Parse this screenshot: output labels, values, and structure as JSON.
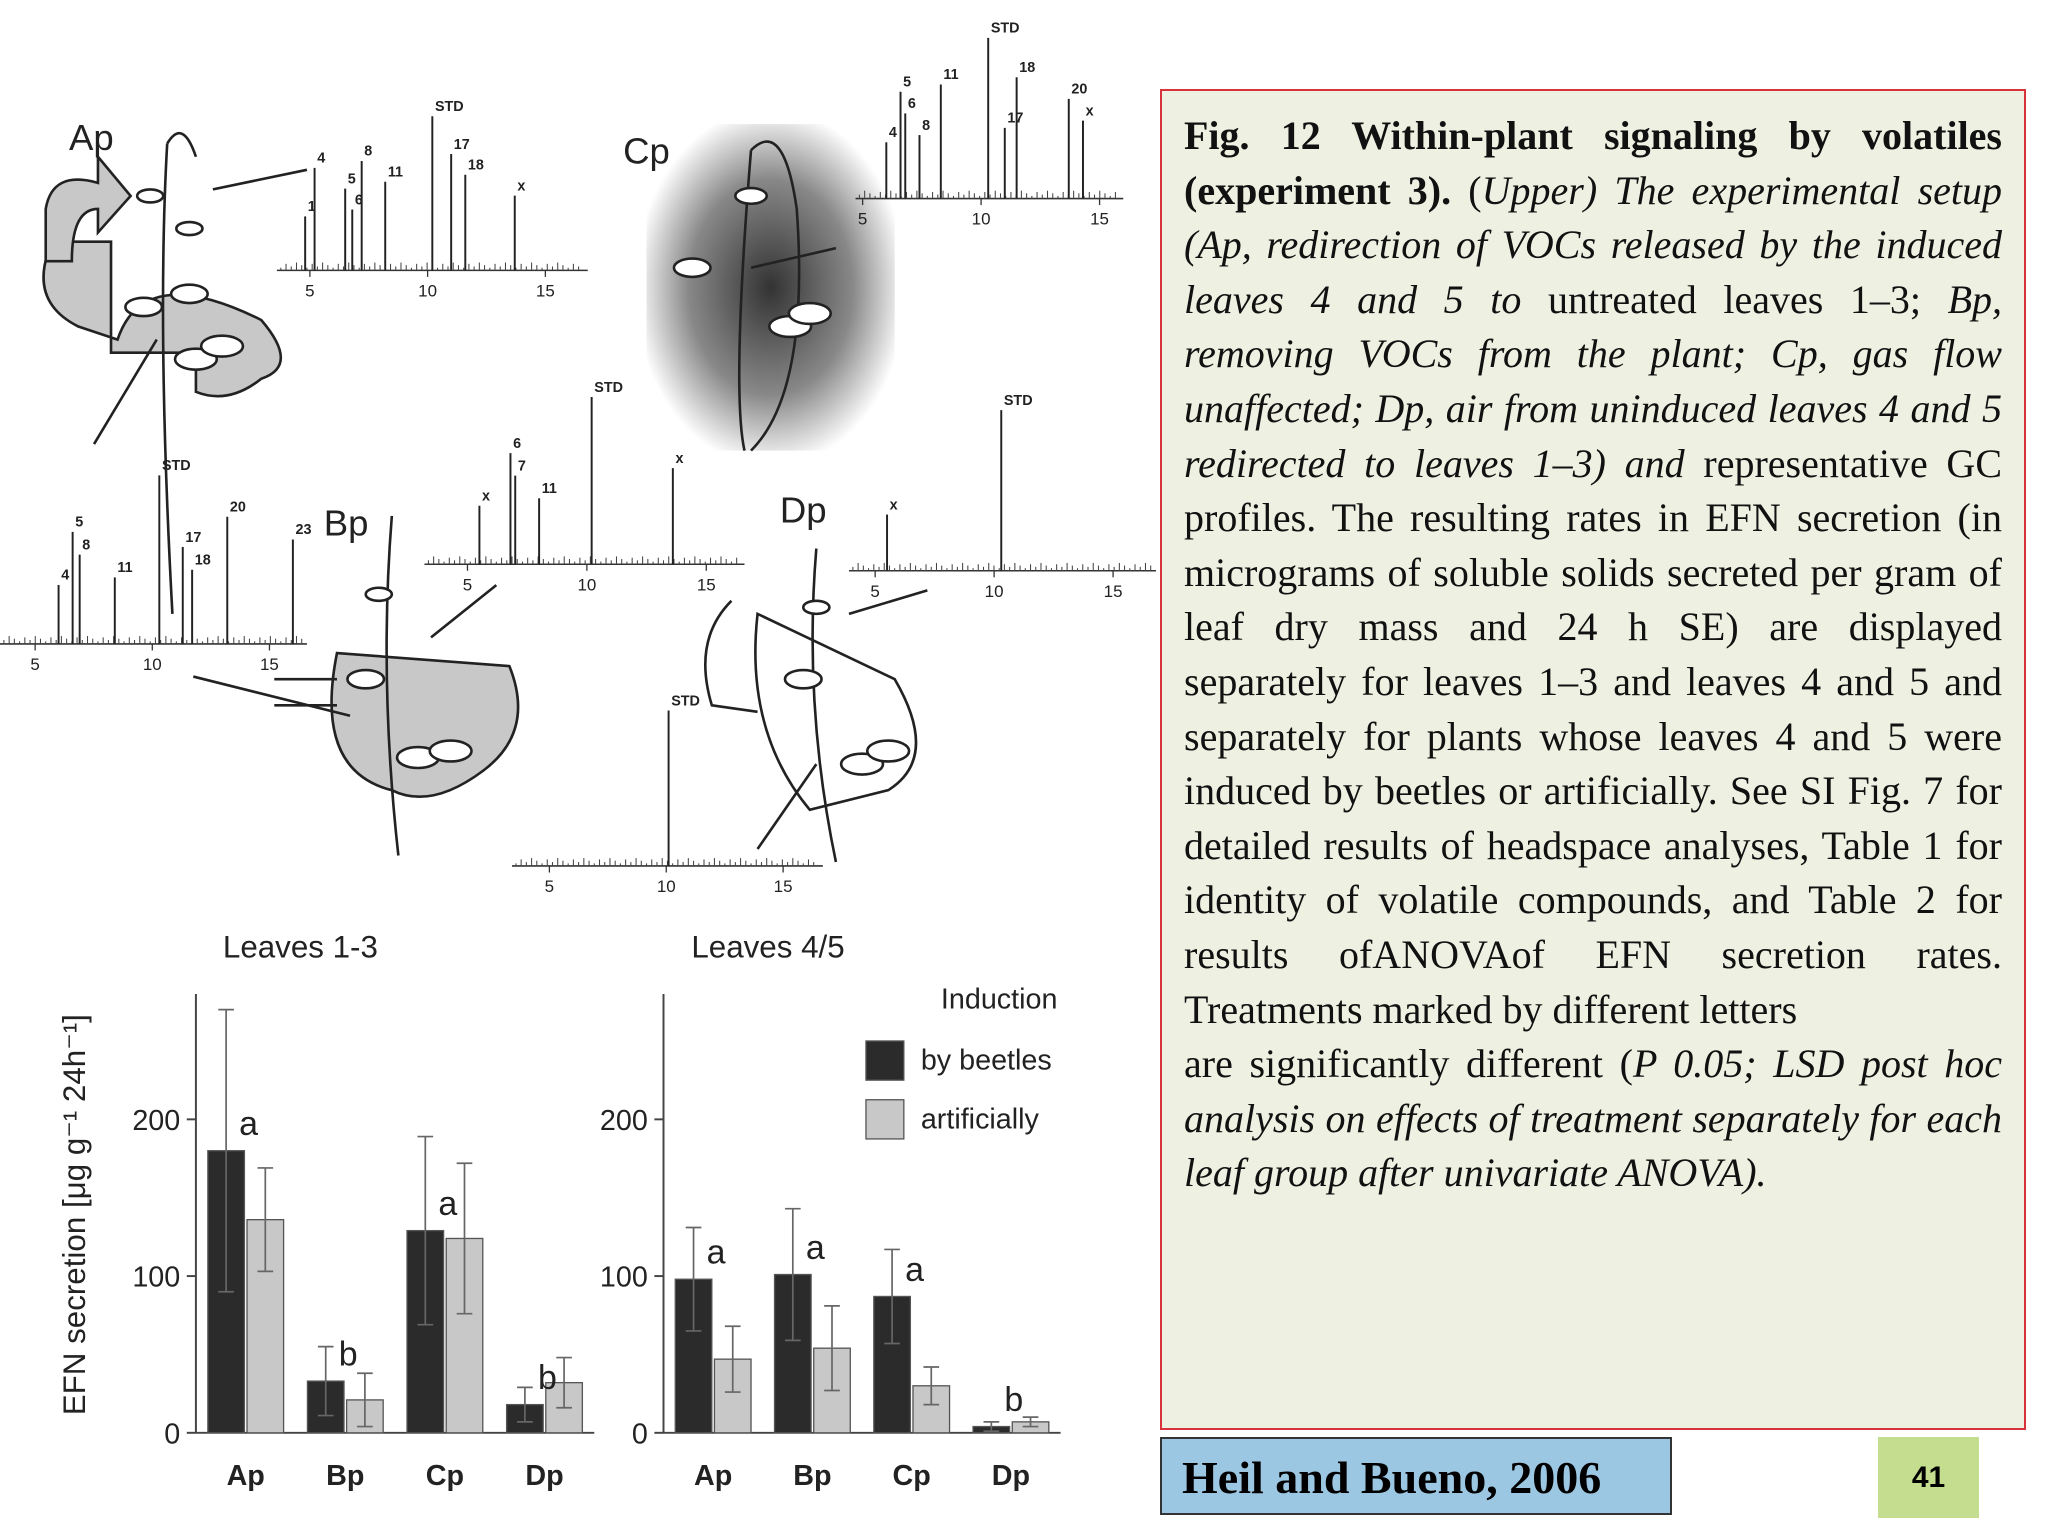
{
  "figure": {
    "plant_labels": [
      "Ap",
      "Bp",
      "Cp",
      "Dp"
    ],
    "gc_profiles": [
      {
        "xlim": [
          3.6,
          16.8
        ],
        "xticks": [
          5,
          10,
          15
        ],
        "peaks": [
          {
            "label": "1",
            "x": 4.8
          },
          {
            "label": "4",
            "x": 5.2
          },
          {
            "label": "5",
            "x": 6.5
          },
          {
            "label": "6",
            "x": 6.8
          },
          {
            "label": "8",
            "x": 7.2
          },
          {
            "label": "11",
            "x": 8.2
          },
          {
            "label": "STD",
            "x": 10.2
          },
          {
            "label": "17",
            "x": 11.0
          },
          {
            "label": "18",
            "x": 11.6
          },
          {
            "label": "x",
            "x": 13.7
          }
        ]
      },
      {
        "xlim": [
          3.5,
          16.6
        ],
        "xticks": [
          5,
          10,
          15
        ],
        "peaks": [
          {
            "label": "4",
            "x": 6.0
          },
          {
            "label": "5",
            "x": 6.6
          },
          {
            "label": "8",
            "x": 6.9
          },
          {
            "label": "11",
            "x": 8.4
          },
          {
            "label": "STD",
            "x": 10.3
          },
          {
            "label": "17",
            "x": 11.3
          },
          {
            "label": "18",
            "x": 11.7
          },
          {
            "label": "20",
            "x": 13.2
          },
          {
            "label": "23",
            "x": 16.0
          }
        ]
      },
      {
        "xlim": [
          4.7,
          16.0
        ],
        "xticks": [
          5,
          10,
          15
        ],
        "peaks": [
          {
            "label": "4",
            "x": 6.0
          },
          {
            "label": "5",
            "x": 6.6
          },
          {
            "label": "6",
            "x": 6.8
          },
          {
            "label": "8",
            "x": 7.4
          },
          {
            "label": "11",
            "x": 8.3
          },
          {
            "label": "STD",
            "x": 10.3
          },
          {
            "label": "17",
            "x": 11.0
          },
          {
            "label": "18",
            "x": 11.5
          },
          {
            "label": "20",
            "x": 13.7
          },
          {
            "label": "x",
            "x": 14.3
          }
        ]
      },
      {
        "xlim": [
          3.2,
          16.6
        ],
        "xticks": [
          5,
          10,
          15
        ],
        "peaks": [
          {
            "label": "x",
            "x": 5.5
          },
          {
            "label": "6",
            "x": 6.8
          },
          {
            "label": "7",
            "x": 7.0
          },
          {
            "label": "11",
            "x": 8.0
          },
          {
            "label": "STD",
            "x": 10.2
          },
          {
            "label": "x",
            "x": 13.6
          }
        ]
      },
      {
        "xlim": [
          3.9,
          16.8
        ],
        "xticks": [
          5,
          10,
          15
        ],
        "peaks": [
          {
            "label": "x",
            "x": 5.5
          },
          {
            "label": "STD",
            "x": 10.3
          }
        ]
      },
      {
        "xlim": [
          3.4,
          16.7
        ],
        "xticks": [
          5,
          10,
          15
        ],
        "peaks": [
          {
            "label": "STD",
            "x": 10.1
          }
        ]
      }
    ]
  },
  "chart_data": [
    {
      "type": "bar",
      "title": "Leaves 1-3",
      "ylabel": "EFN secretion [μg g⁻¹ 24h⁻¹]",
      "categories": [
        "Ap",
        "Bp",
        "Cp",
        "Dp"
      ],
      "ylim": [
        0,
        280
      ],
      "yticks": [
        0,
        100,
        200
      ],
      "series": [
        {
          "color": "#2b2b2b",
          "values": [
            180,
            33,
            129,
            18
          ],
          "errors": [
            90,
            22,
            60,
            11
          ]
        },
        {
          "color": "#c8c8c8",
          "values": [
            136,
            21,
            124,
            32
          ],
          "errors": [
            33,
            17,
            48,
            16
          ]
        }
      ],
      "letters": [
        "a",
        "b",
        "a",
        "b"
      ]
    },
    {
      "type": "bar",
      "title": "Leaves 4/5",
      "legend_title": "Induction",
      "legend": true,
      "categories": [
        "Ap",
        "Bp",
        "Cp",
        "Dp"
      ],
      "ylim": [
        0,
        280
      ],
      "yticks": [
        0,
        100,
        200
      ],
      "series": [
        {
          "name": "by beetles",
          "color": "#2b2b2b",
          "values": [
            98,
            101,
            87,
            4
          ],
          "errors": [
            33,
            42,
            30,
            3
          ]
        },
        {
          "name": "artificially",
          "color": "#c8c8c8",
          "values": [
            47,
            54,
            30,
            7
          ],
          "errors": [
            21,
            27,
            12,
            3
          ]
        }
      ],
      "letters": [
        "a",
        "a",
        "a",
        "b"
      ]
    }
  ],
  "caption": {
    "paragraphs": [
      [
        {
          "text": "Fig. 12 Within-plant signaling by volatiles (experiment 3).",
          "style": "b"
        },
        {
          "text": " (",
          "style": "n"
        },
        {
          "text": "Upper) The experimental setup (Ap, redirection of VOCs released by the induced leaves 4 and 5 to",
          "style": "i"
        },
        {
          "text": " untreated leaves 1–3; ",
          "style": "n"
        },
        {
          "text": "Bp, removing VOCs from the plant; Cp, gas flow unaffected; Dp, air from uninduced leaves 4 and 5 redirected to leaves 1–3) and",
          "style": "i"
        },
        {
          "text": " representative GC profiles. The resulting rates in EFN secretion (in micrograms of soluble solids secreted per gram of leaf dry mass and 24 h  SE) are displayed separately for leaves 1–3 and leaves 4 and 5 and separately for plants whose leaves 4 and 5 were induced by beetles or artificially. See SI Fig. 7 for detailed results of headspace analyses, Table 1 for identity of volatile compounds, and Table 2 for results ofANOVAof EFN secretion rates. Treatments marked by different letters",
          "style": "n"
        }
      ],
      [
        {
          "text": "are significantly different (",
          "style": "n"
        },
        {
          "text": "P  0.05; LSD post hoc analysis on effects of treatment separately for each leaf group after univariate ANOVA).",
          "style": "i"
        }
      ]
    ]
  },
  "citation": "Heil and Bueno, 2006",
  "page_number": "41"
}
